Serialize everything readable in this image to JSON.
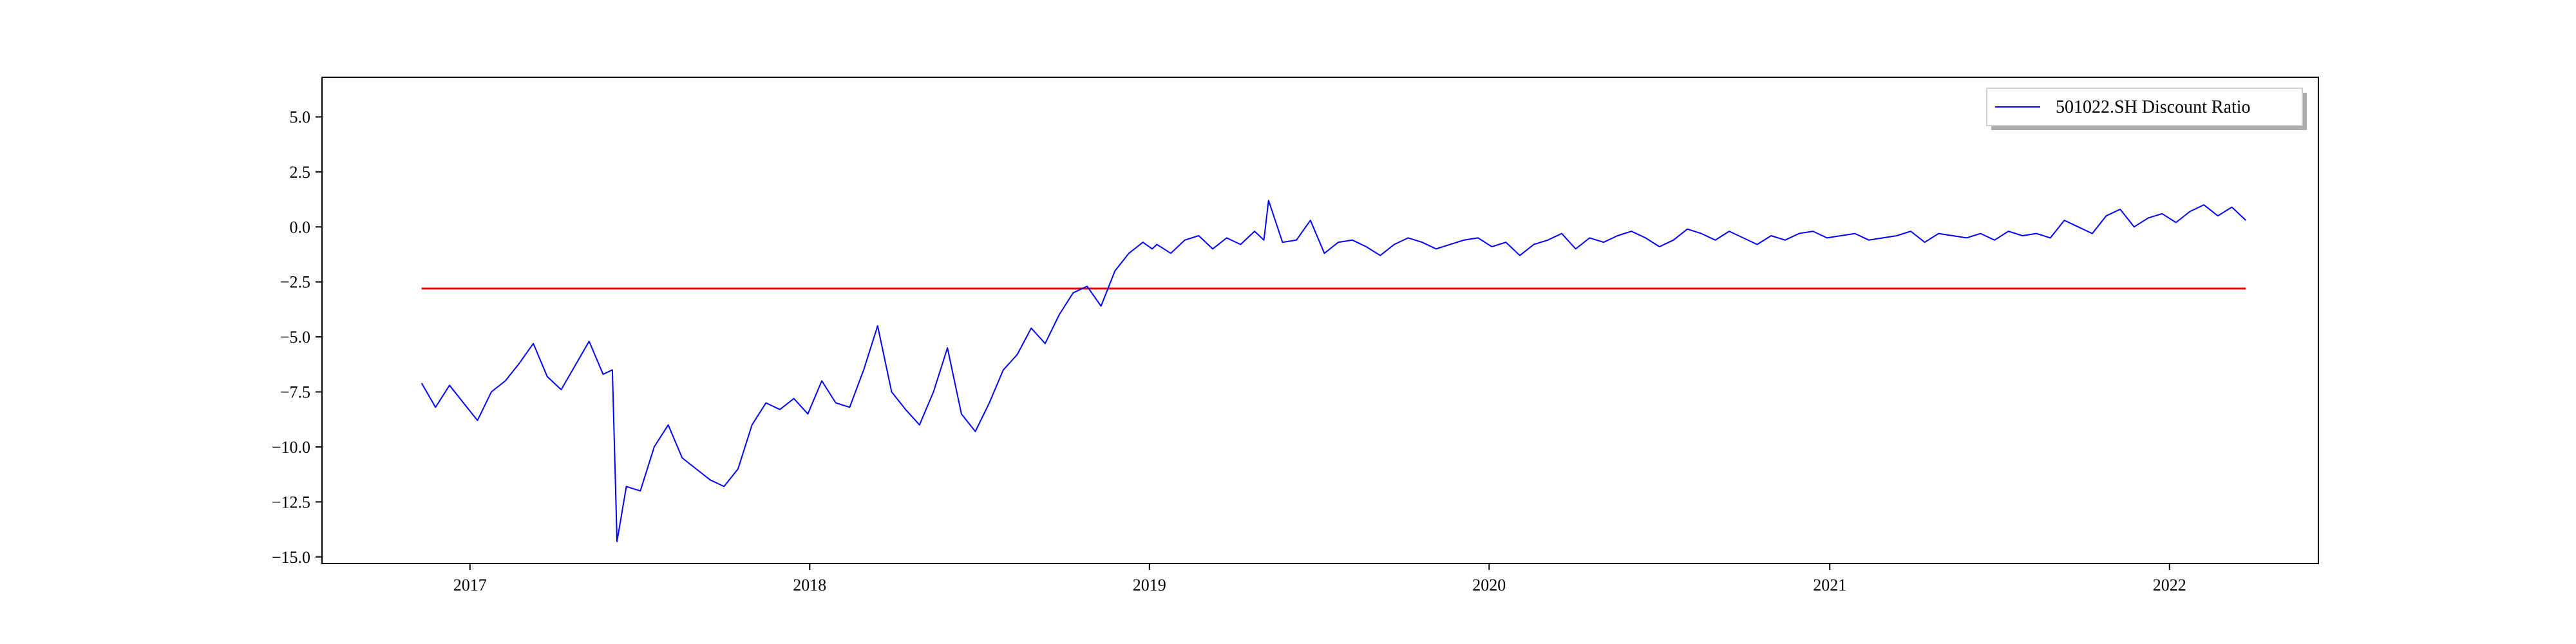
{
  "chart_data": {
    "type": "line",
    "title": "",
    "xlabel": "",
    "ylabel": "",
    "xlim": [
      "2016-07-26",
      "2022-06-10"
    ],
    "ylim": [
      -15.3,
      6.8
    ],
    "x_ticks": [
      "2017-01-01",
      "2018-01-01",
      "2019-01-01",
      "2020-01-01",
      "2021-01-01",
      "2022-01-01"
    ],
    "x_tick_labels": [
      "2017",
      "2018",
      "2019",
      "2020",
      "2021",
      "2022"
    ],
    "y_ticks": [
      5.0,
      2.5,
      0.0,
      -2.5,
      -5.0,
      -7.5,
      -10.0,
      -12.5,
      -15.0
    ],
    "y_tick_labels": [
      "5.0",
      "2.5",
      "0.0",
      "−2.5",
      "−5.0",
      "−7.5",
      "−10.0",
      "−12.5",
      "−15.0"
    ],
    "grid": false,
    "legend": {
      "position": "top-right",
      "entries": [
        "501022.SH Discount Ratio"
      ]
    },
    "series": [
      {
        "name": "501022.SH Discount Ratio",
        "color": "#0000ff",
        "x": [
          "2016-11-10",
          "2016-11-25",
          "2016-12-10",
          "2016-12-25",
          "2017-01-09",
          "2017-01-24",
          "2017-02-08",
          "2017-02-23",
          "2017-03-10",
          "2017-03-25",
          "2017-04-09",
          "2017-04-24",
          "2017-05-09",
          "2017-05-24",
          "2017-06-03",
          "2017-06-08",
          "2017-06-18",
          "2017-07-03",
          "2017-07-18",
          "2017-08-02",
          "2017-08-17",
          "2017-09-01",
          "2017-09-16",
          "2017-10-01",
          "2017-10-16",
          "2017-10-31",
          "2017-11-15",
          "2017-11-30",
          "2017-12-15",
          "2017-12-30",
          "2018-01-14",
          "2018-01-29",
          "2018-02-13",
          "2018-02-28",
          "2018-03-15",
          "2018-03-30",
          "2018-04-14",
          "2018-04-29",
          "2018-05-14",
          "2018-05-29",
          "2018-06-13",
          "2018-06-28",
          "2018-07-13",
          "2018-07-28",
          "2018-08-12",
          "2018-08-27",
          "2018-09-11",
          "2018-09-26",
          "2018-10-11",
          "2018-10-26",
          "2018-11-10",
          "2018-11-25",
          "2018-12-10",
          "2018-12-25",
          "2019-01-04",
          "2019-01-09",
          "2019-01-24",
          "2019-02-08",
          "2019-02-23",
          "2019-03-10",
          "2019-03-25",
          "2019-04-09",
          "2019-04-24",
          "2019-05-04",
          "2019-05-09",
          "2019-05-24",
          "2019-06-08",
          "2019-06-23",
          "2019-07-08",
          "2019-07-23",
          "2019-08-07",
          "2019-08-22",
          "2019-09-06",
          "2019-09-21",
          "2019-10-06",
          "2019-10-21",
          "2019-11-05",
          "2019-11-20",
          "2019-12-05",
          "2019-12-20",
          "2020-01-04",
          "2020-01-19",
          "2020-02-03",
          "2020-02-18",
          "2020-03-04",
          "2020-03-19",
          "2020-04-03",
          "2020-04-18",
          "2020-05-03",
          "2020-05-18",
          "2020-06-02",
          "2020-06-17",
          "2020-07-02",
          "2020-07-17",
          "2020-08-01",
          "2020-08-16",
          "2020-08-31",
          "2020-09-15",
          "2020-09-30",
          "2020-10-15",
          "2020-10-30",
          "2020-11-14",
          "2020-11-29",
          "2020-12-14",
          "2020-12-29",
          "2021-01-13",
          "2021-01-28",
          "2021-02-12",
          "2021-02-27",
          "2021-03-14",
          "2021-03-29",
          "2021-04-13",
          "2021-04-28",
          "2021-05-13",
          "2021-05-28",
          "2021-06-12",
          "2021-06-27",
          "2021-07-12",
          "2021-07-27",
          "2021-08-11",
          "2021-08-26",
          "2021-09-10",
          "2021-09-25",
          "2021-10-10",
          "2021-10-25",
          "2021-11-09",
          "2021-11-24",
          "2021-12-09",
          "2021-12-24",
          "2022-01-08",
          "2022-01-23",
          "2022-02-07",
          "2022-02-22",
          "2022-03-09",
          "2022-03-24"
        ],
        "y": [
          -7.1,
          -8.2,
          -7.2,
          -8.0,
          -8.8,
          -7.5,
          -7.0,
          -6.2,
          -5.3,
          -6.8,
          -7.4,
          -6.3,
          -5.2,
          -6.7,
          -6.5,
          -14.3,
          -11.8,
          -12.0,
          -10.0,
          -9.0,
          -10.5,
          -11.0,
          -11.5,
          -11.8,
          -11.0,
          -9.0,
          -8.0,
          -8.3,
          -7.8,
          -8.5,
          -7.0,
          -8.0,
          -8.2,
          -6.5,
          -4.5,
          -7.5,
          -8.3,
          -9.0,
          -7.5,
          -5.5,
          -8.5,
          -9.3,
          -8.0,
          -6.5,
          -5.8,
          -4.6,
          -5.3,
          -4.0,
          -3.0,
          -2.7,
          -3.6,
          -2.0,
          -1.2,
          -0.7,
          -1.0,
          -0.8,
          -1.2,
          -0.6,
          -0.4,
          -1.0,
          -0.5,
          -0.8,
          -0.2,
          -0.6,
          1.2,
          -0.7,
          -0.6,
          0.3,
          -1.2,
          -0.7,
          -0.6,
          -0.9,
          -1.3,
          -0.8,
          -0.5,
          -0.7,
          -1.0,
          -0.8,
          -0.6,
          -0.5,
          -0.9,
          -0.7,
          -1.3,
          -0.8,
          -0.6,
          -0.3,
          -1.0,
          -0.5,
          -0.7,
          -0.4,
          -0.2,
          -0.5,
          -0.9,
          -0.6,
          -0.1,
          -0.3,
          -0.6,
          -0.2,
          -0.5,
          -0.8,
          -0.4,
          -0.6,
          -0.3,
          -0.2,
          -0.5,
          -0.4,
          -0.3,
          -0.6,
          -0.5,
          -0.4,
          -0.2,
          -0.7,
          -0.3,
          -0.4,
          -0.5,
          -0.3,
          -0.6,
          -0.2,
          -0.4,
          -0.3,
          -0.5,
          0.3,
          0.0,
          -0.3,
          0.5,
          0.8,
          0.0,
          0.4,
          0.6,
          0.2,
          0.7,
          1.0,
          0.5,
          0.9,
          0.3
        ]
      }
    ],
    "reference_line": {
      "y": -2.8,
      "x_start": "2016-11-10",
      "x_end": "2022-03-24",
      "color": "#ff0000"
    }
  }
}
